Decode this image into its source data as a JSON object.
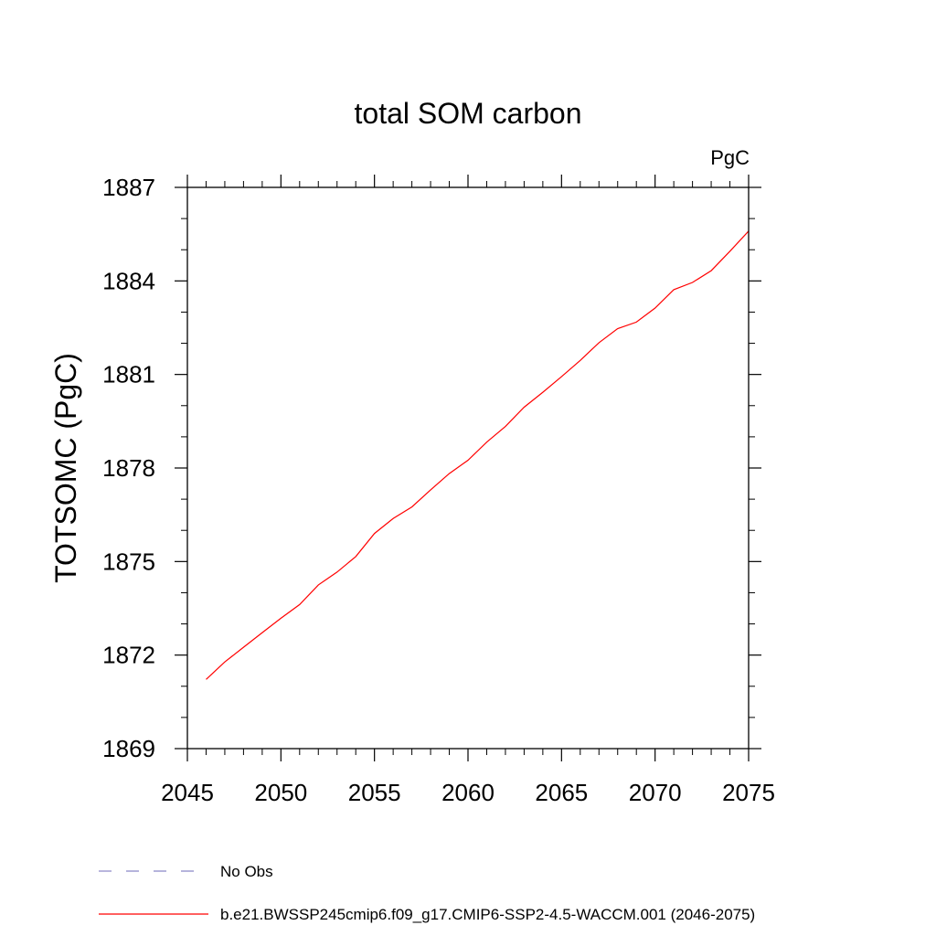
{
  "chart_data": {
    "type": "line",
    "title": "total SOM carbon",
    "units": "PgC",
    "ylabel": "TOTSOMC  (PgC)",
    "xlabel": "",
    "xlim": [
      2045,
      2075
    ],
    "ylim": [
      1869,
      1887
    ],
    "xticks": [
      2045,
      2050,
      2055,
      2060,
      2065,
      2070,
      2075
    ],
    "xtick_labels": [
      "2045",
      "2050",
      "2055",
      "2060",
      "2065",
      "2070",
      "2075"
    ],
    "yticks": [
      1869,
      1872,
      1875,
      1878,
      1881,
      1884,
      1887
    ],
    "ytick_labels": [
      "1869",
      "1872",
      "1875",
      "1878",
      "1881",
      "1884",
      "1887"
    ],
    "grid": false,
    "legend_position": "bottom-left, below plot",
    "legend": [
      {
        "label": "No Obs",
        "style": "dashed",
        "color": "#8a86c6"
      },
      {
        "label": "b.e21.BWSSP245cmip6.f09_g17.CMIP6-SSP2-4.5-WACCM.001 (2046-2075)",
        "style": "solid",
        "color": "#ff0000"
      }
    ],
    "series": [
      {
        "name": "b.e21.BWSSP245cmip6.f09_g17.CMIP6-SSP2-4.5-WACCM.001 (2046-2075)",
        "color": "#ff0000",
        "x": [
          2046,
          2047,
          2048,
          2049,
          2050,
          2051,
          2052,
          2053,
          2054,
          2055,
          2056,
          2057,
          2058,
          2059,
          2060,
          2061,
          2062,
          2063,
          2064,
          2065,
          2066,
          2067,
          2068,
          2069,
          2070,
          2071,
          2072,
          2073,
          2074,
          2075
        ],
        "values": [
          1871.22,
          1871.78,
          1872.25,
          1872.72,
          1873.18,
          1873.62,
          1874.25,
          1874.66,
          1875.16,
          1875.9,
          1876.38,
          1876.75,
          1877.3,
          1877.82,
          1878.25,
          1878.83,
          1879.33,
          1879.95,
          1880.43,
          1880.93,
          1881.45,
          1882.02,
          1882.47,
          1882.68,
          1883.13,
          1883.72,
          1883.95,
          1884.33,
          1884.95,
          1885.6
        ]
      }
    ]
  }
}
